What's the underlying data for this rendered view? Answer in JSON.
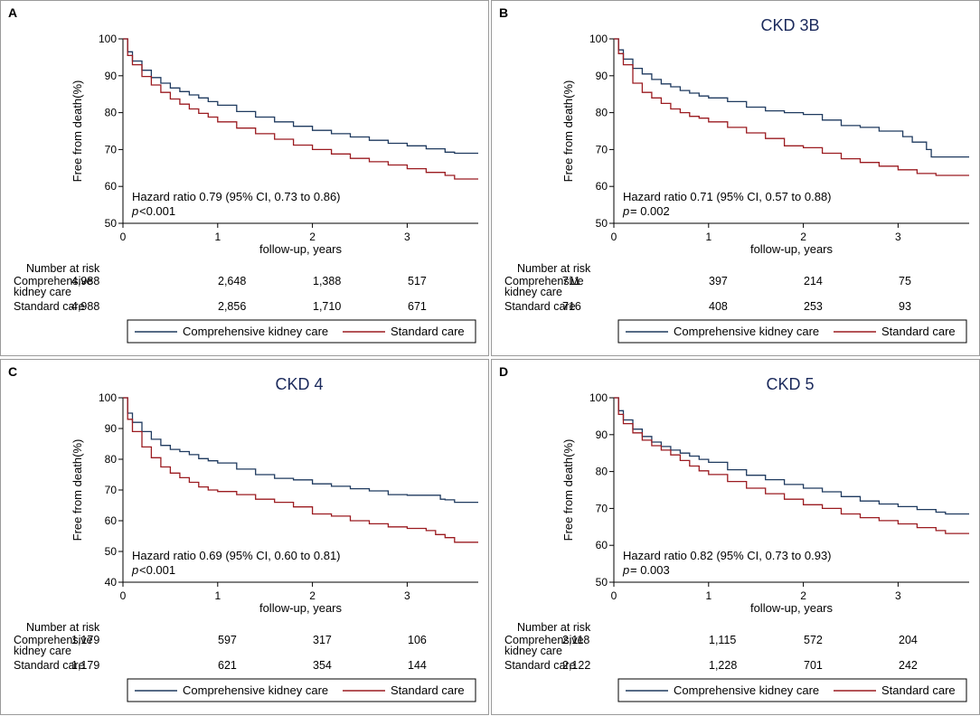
{
  "colors": {
    "comprehensive": "#1f3a5f",
    "standard": "#9b1b20"
  },
  "chart_data": [
    {
      "type": "line",
      "panel_label": "A",
      "title": "",
      "xlabel": "follow-up, years",
      "ylabel": "Free from death(%)",
      "xlim": [
        0,
        3.75
      ],
      "ylim": [
        50,
        100
      ],
      "xticks": [
        "0",
        "1",
        "2",
        "3"
      ],
      "yticks": [
        "50",
        "60",
        "70",
        "80",
        "90",
        "100"
      ],
      "hazard_text": "Hazard ratio 0.79 (95% CI, 0.73 to 0.86)",
      "p_label": "p",
      "p_text": "<0.001",
      "risk_header": "Number at risk",
      "risk_rows": [
        {
          "label_lines": [
            "Comprehensive",
            "kidney care"
          ],
          "values": [
            "4,988",
            "2,648",
            "1,388",
            "517"
          ]
        },
        {
          "label_lines": [
            "Standard care"
          ],
          "values": [
            "4,988",
            "2,856",
            "1,710",
            "671"
          ]
        }
      ],
      "legend": [
        "Comprehensive kidney care",
        "Standard care"
      ],
      "series": [
        {
          "name": "Comprehensive kidney care",
          "x": [
            0,
            0.05,
            0.1,
            0.2,
            0.3,
            0.4,
            0.5,
            0.6,
            0.7,
            0.8,
            0.9,
            1.0,
            1.2,
            1.4,
            1.6,
            1.8,
            2.0,
            2.2,
            2.4,
            2.6,
            2.8,
            3.0,
            3.2,
            3.4,
            3.5,
            3.75
          ],
          "y": [
            100,
            96.5,
            94,
            91.5,
            89.5,
            88,
            86.7,
            85.7,
            84.8,
            84,
            83,
            82,
            80.3,
            78.8,
            77.5,
            76.3,
            75.2,
            74.3,
            73.4,
            72.5,
            71.7,
            71,
            70.2,
            69.3,
            69,
            69
          ]
        },
        {
          "name": "Standard care",
          "x": [
            0,
            0.05,
            0.1,
            0.2,
            0.3,
            0.4,
            0.5,
            0.6,
            0.7,
            0.8,
            0.9,
            1.0,
            1.2,
            1.4,
            1.6,
            1.8,
            2.0,
            2.2,
            2.4,
            2.6,
            2.8,
            3.0,
            3.2,
            3.4,
            3.5,
            3.75
          ],
          "y": [
            100,
            95.5,
            93,
            89.8,
            87.5,
            85.5,
            83.7,
            82.3,
            81,
            79.8,
            78.8,
            77.5,
            75.8,
            74.3,
            72.8,
            71.2,
            70,
            68.8,
            67.6,
            66.7,
            65.8,
            64.8,
            63.8,
            63,
            62,
            62
          ]
        }
      ]
    },
    {
      "type": "line",
      "panel_label": "B",
      "title": "CKD 3B",
      "xlabel": "follow-up, years",
      "ylabel": "Free from death(%)",
      "xlim": [
        0,
        3.75
      ],
      "ylim": [
        50,
        100
      ],
      "xticks": [
        "0",
        "1",
        "2",
        "3"
      ],
      "yticks": [
        "50",
        "60",
        "70",
        "80",
        "90",
        "100"
      ],
      "hazard_text": "Hazard ratio 0.71 (95% CI, 0.57 to 0.88)",
      "p_label": "p",
      "p_text": "= 0.002",
      "risk_header": "Number at risk",
      "risk_rows": [
        {
          "label_lines": [
            "Comprehensive",
            "kidney care"
          ],
          "values": [
            "711",
            "397",
            "214",
            "75"
          ]
        },
        {
          "label_lines": [
            "Standard care"
          ],
          "values": [
            "716",
            "408",
            "253",
            "93"
          ]
        }
      ],
      "legend": [
        "Comprehensive kidney care",
        "Standard care"
      ],
      "series": [
        {
          "name": "Comprehensive kidney care",
          "x": [
            0,
            0.05,
            0.1,
            0.2,
            0.3,
            0.4,
            0.5,
            0.6,
            0.7,
            0.8,
            0.9,
            1.0,
            1.2,
            1.4,
            1.6,
            1.8,
            2.0,
            2.2,
            2.4,
            2.6,
            2.8,
            3.0,
            3.05,
            3.15,
            3.3,
            3.35,
            3.75
          ],
          "y": [
            100,
            97,
            94.5,
            92,
            90.5,
            89,
            87.8,
            87,
            86,
            85.3,
            84.5,
            84,
            83,
            81.5,
            80.5,
            80,
            79.5,
            78,
            76.5,
            76,
            75,
            75,
            73.5,
            72,
            70,
            68,
            68
          ]
        },
        {
          "name": "Standard care",
          "x": [
            0,
            0.05,
            0.1,
            0.2,
            0.3,
            0.4,
            0.5,
            0.6,
            0.7,
            0.8,
            0.9,
            1.0,
            1.2,
            1.4,
            1.6,
            1.8,
            2.0,
            2.2,
            2.4,
            2.6,
            2.8,
            3.0,
            3.2,
            3.4,
            3.75
          ],
          "y": [
            100,
            96,
            93,
            88,
            85.5,
            84,
            82.5,
            81,
            80,
            79,
            78.5,
            77.5,
            76,
            74.5,
            73,
            71,
            70.5,
            69,
            67.5,
            66.5,
            65.5,
            64.5,
            63.5,
            63,
            63
          ]
        }
      ]
    },
    {
      "type": "line",
      "panel_label": "C",
      "title": "CKD 4",
      "xlabel": "follow-up, years",
      "ylabel": "Free from death(%)",
      "xlim": [
        0,
        3.75
      ],
      "ylim": [
        40,
        100
      ],
      "xticks": [
        "0",
        "1",
        "2",
        "3"
      ],
      "yticks": [
        "40",
        "50",
        "60",
        "70",
        "80",
        "90",
        "100"
      ],
      "hazard_text": "Hazard ratio 0.69 (95% CI, 0.60 to 0.81)",
      "p_label": "p",
      "p_text": "<0.001",
      "risk_header": "Number at risk",
      "risk_rows": [
        {
          "label_lines": [
            "Comprehensive",
            "kidney care"
          ],
          "values": [
            "1,179",
            "597",
            "317",
            "106"
          ]
        },
        {
          "label_lines": [
            "Standard care"
          ],
          "values": [
            "1,179",
            "621",
            "354",
            "144"
          ]
        }
      ],
      "legend": [
        "Comprehensive kidney care",
        "Standard care"
      ],
      "series": [
        {
          "name": "Comprehensive kidney care",
          "x": [
            0,
            0.05,
            0.1,
            0.2,
            0.3,
            0.4,
            0.5,
            0.6,
            0.7,
            0.8,
            0.9,
            1.0,
            1.2,
            1.4,
            1.6,
            1.8,
            2.0,
            2.2,
            2.4,
            2.6,
            2.8,
            3.0,
            3.2,
            3.35,
            3.4,
            3.5,
            3.75
          ],
          "y": [
            100,
            95,
            92,
            89,
            86.5,
            84.5,
            83.2,
            82.5,
            81.5,
            80.2,
            79.5,
            78.8,
            76.8,
            75,
            73.8,
            73.3,
            72,
            71.2,
            70.4,
            69.7,
            68.5,
            68.3,
            68.3,
            67,
            66.8,
            66,
            66
          ]
        },
        {
          "name": "Standard care",
          "x": [
            0,
            0.05,
            0.1,
            0.2,
            0.3,
            0.4,
            0.5,
            0.6,
            0.7,
            0.8,
            0.9,
            1.0,
            1.2,
            1.4,
            1.6,
            1.8,
            2.0,
            2.2,
            2.4,
            2.6,
            2.8,
            3.0,
            3.2,
            3.3,
            3.4,
            3.5,
            3.75
          ],
          "y": [
            100,
            93,
            89,
            84,
            80.5,
            77.5,
            75.5,
            74,
            72.5,
            71,
            70,
            69.5,
            68.5,
            67,
            66,
            64.5,
            62.2,
            61.5,
            60,
            59,
            58,
            57.5,
            56.8,
            55.5,
            54.5,
            53,
            53
          ]
        }
      ]
    },
    {
      "type": "line",
      "panel_label": "D",
      "title": "CKD 5",
      "xlabel": "follow-up, years",
      "ylabel": "Free from death(%)",
      "xlim": [
        0,
        3.75
      ],
      "ylim": [
        50,
        100
      ],
      "xticks": [
        "0",
        "1",
        "2",
        "3"
      ],
      "yticks": [
        "50",
        "60",
        "70",
        "80",
        "90",
        "100"
      ],
      "hazard_text": "Hazard ratio 0.82 (95% CI, 0.73 to 0.93)",
      "p_label": "p",
      "p_text": "= 0.003",
      "risk_header": "Number at risk",
      "risk_rows": [
        {
          "label_lines": [
            "Comprehensive",
            "kidney care"
          ],
          "values": [
            "2,118",
            "1,115",
            "572",
            "204"
          ]
        },
        {
          "label_lines": [
            "Standard care"
          ],
          "values": [
            "2,122",
            "1,228",
            "701",
            "242"
          ]
        }
      ],
      "legend": [
        "Comprehensive kidney care",
        "Standard care"
      ],
      "series": [
        {
          "name": "Comprehensive kidney care",
          "x": [
            0,
            0.05,
            0.1,
            0.2,
            0.3,
            0.4,
            0.5,
            0.6,
            0.7,
            0.8,
            0.9,
            1.0,
            1.2,
            1.4,
            1.6,
            1.8,
            2.0,
            2.2,
            2.4,
            2.6,
            2.8,
            3.0,
            3.2,
            3.4,
            3.5,
            3.75
          ],
          "y": [
            100,
            96.5,
            94,
            91.5,
            89.5,
            88,
            86.8,
            85.8,
            85,
            84.2,
            83.3,
            82.5,
            80.5,
            79,
            77.8,
            76.5,
            75.5,
            74.5,
            73.2,
            72,
            71.2,
            70.5,
            69.7,
            69,
            68.5,
            68.5
          ]
        },
        {
          "name": "Standard care",
          "x": [
            0,
            0.05,
            0.1,
            0.2,
            0.3,
            0.4,
            0.5,
            0.6,
            0.7,
            0.8,
            0.9,
            1.0,
            1.2,
            1.4,
            1.6,
            1.8,
            2.0,
            2.2,
            2.4,
            2.6,
            2.8,
            3.0,
            3.2,
            3.4,
            3.5,
            3.75
          ],
          "y": [
            100,
            95.5,
            93,
            90.5,
            88.5,
            87,
            85.8,
            84.5,
            83,
            81.5,
            80.2,
            79.2,
            77.3,
            75.5,
            74,
            72.5,
            71,
            70,
            68.5,
            67.5,
            66.7,
            65.8,
            64.8,
            64,
            63.2,
            63.2
          ]
        }
      ]
    }
  ]
}
